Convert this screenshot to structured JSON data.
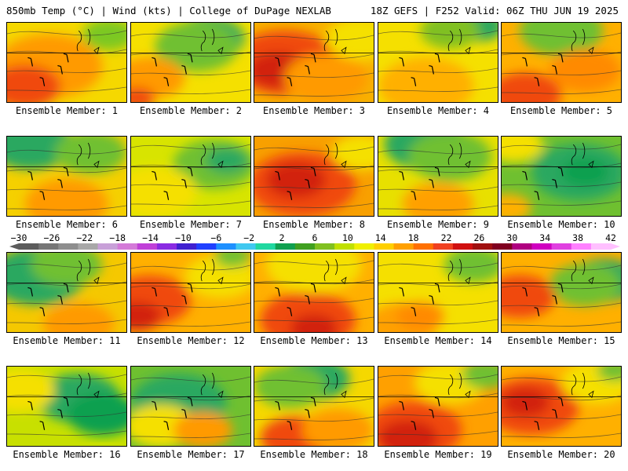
{
  "header": {
    "left": "850mb Temp (°C) | Wind (kts) | College of DuPage NEXLAB",
    "right": "18Z GEFS | F252 Valid: 06Z THU JUN 19 2025"
  },
  "colorbar": {
    "ticks": [
      "-30",
      "-26",
      "-22",
      "-18",
      "-14",
      "-10",
      "-6",
      "-2",
      "2",
      "6",
      "10",
      "14",
      "18",
      "22",
      "26",
      "30",
      "34",
      "38",
      "42"
    ],
    "colors": [
      "#5c5c5c",
      "#767676",
      "#8e8e8e",
      "#a8a8a8",
      "#c8a0d8",
      "#d47ad8",
      "#c040d8",
      "#8a2be2",
      "#4020d0",
      "#2040ff",
      "#1e90ff",
      "#40c8f0",
      "#20d8a0",
      "#10a050",
      "#40a020",
      "#80c020",
      "#c0e000",
      "#f0f000",
      "#ffd000",
      "#ffa000",
      "#ff7000",
      "#f04020",
      "#d01010",
      "#a01010",
      "#800020",
      "#b00080",
      "#d000c0",
      "#e040e0",
      "#ff80ff",
      "#ffc0ff"
    ],
    "range": [
      -30,
      42
    ]
  },
  "panels": [
    {
      "label": "Ensemble Member: 1",
      "base": "#f5d800",
      "blobs": [
        [
          "#ff9a00",
          0.35,
          0.55,
          0.45
        ],
        [
          "#f04a10",
          0.15,
          0.8,
          0.3
        ],
        [
          "#7cc820",
          0.85,
          0.15,
          0.22
        ]
      ]
    },
    {
      "label": "Ensemble Member: 2",
      "base": "#f5e000",
      "blobs": [
        [
          "#2aa860",
          0.65,
          0.2,
          0.3
        ],
        [
          "#6fc030",
          0.55,
          0.3,
          0.35
        ],
        [
          "#ff9a00",
          0.15,
          0.7,
          0.3
        ],
        [
          "#f04a10",
          0.05,
          0.95,
          0.15
        ]
      ]
    },
    {
      "label": "Ensemble Member: 3",
      "base": "#f8b000",
      "blobs": [
        [
          "#f04a10",
          0.25,
          0.5,
          0.45
        ],
        [
          "#d22010",
          0.2,
          0.6,
          0.25
        ],
        [
          "#ff9a00",
          0.6,
          0.7,
          0.35
        ],
        [
          "#f5e000",
          0.9,
          0.2,
          0.3
        ]
      ]
    },
    {
      "label": "Ensemble Member: 4",
      "base": "#f5e000",
      "blobs": [
        [
          "#ffb000",
          0.4,
          0.8,
          0.4
        ],
        [
          "#2aa860",
          0.85,
          0.05,
          0.2
        ],
        [
          "#80c020",
          0.6,
          0.1,
          0.25
        ]
      ]
    },
    {
      "label": "Ensemble Member: 5",
      "base": "#ffb000",
      "blobs": [
        [
          "#6fc030",
          0.5,
          0.1,
          0.35
        ],
        [
          "#f04a10",
          0.2,
          0.9,
          0.3
        ],
        [
          "#ff8a00",
          0.7,
          0.6,
          0.3
        ]
      ]
    },
    {
      "label": "Ensemble Member: 6",
      "base": "#f5d000",
      "blobs": [
        [
          "#2aa860",
          0.2,
          0.1,
          0.35
        ],
        [
          "#6fc030",
          0.7,
          0.2,
          0.3
        ],
        [
          "#ff9a00",
          0.5,
          0.85,
          0.35
        ]
      ]
    },
    {
      "label": "Ensemble Member: 7",
      "base": "#d8e400",
      "blobs": [
        [
          "#6fc030",
          0.7,
          0.35,
          0.35
        ],
        [
          "#2aa860",
          0.8,
          0.3,
          0.18
        ],
        [
          "#f5e000",
          0.2,
          0.7,
          0.35
        ]
      ]
    },
    {
      "label": "Ensemble Member: 8",
      "base": "#f8a000",
      "blobs": [
        [
          "#f04a10",
          0.4,
          0.6,
          0.45
        ],
        [
          "#d22010",
          0.35,
          0.55,
          0.25
        ],
        [
          "#f5e000",
          0.9,
          0.2,
          0.25
        ]
      ]
    },
    {
      "label": "Ensemble Member: 9",
      "base": "#e8e000",
      "blobs": [
        [
          "#2aa860",
          0.4,
          0.1,
          0.35
        ],
        [
          "#6fc030",
          0.6,
          0.25,
          0.35
        ],
        [
          "#ffa000",
          0.5,
          0.85,
          0.3
        ]
      ]
    },
    {
      "label": "Ensemble Member: 10",
      "base": "#6fc030",
      "blobs": [
        [
          "#2aa860",
          0.65,
          0.45,
          0.4
        ],
        [
          "#10a050",
          0.7,
          0.45,
          0.2
        ],
        [
          "#f5e000",
          0.1,
          0.1,
          0.25
        ],
        [
          "#ffb000",
          0.05,
          0.9,
          0.2
        ]
      ]
    },
    {
      "label": "Ensemble Member: 11",
      "base": "#f5c800",
      "blobs": [
        [
          "#2aa860",
          0.25,
          0.3,
          0.4
        ],
        [
          "#6fc030",
          0.5,
          0.15,
          0.3
        ],
        [
          "#ff9a00",
          0.6,
          0.9,
          0.3
        ]
      ]
    },
    {
      "label": "Ensemble Member: 12",
      "base": "#ffb000",
      "blobs": [
        [
          "#f04a10",
          0.15,
          0.6,
          0.35
        ],
        [
          "#d22010",
          0.05,
          0.8,
          0.2
        ],
        [
          "#f5e000",
          0.75,
          0.3,
          0.3
        ],
        [
          "#6fc030",
          0.85,
          0.05,
          0.15
        ]
      ]
    },
    {
      "label": "Ensemble Member: 13",
      "base": "#ffb000",
      "blobs": [
        [
          "#f04a10",
          0.45,
          0.85,
          0.4
        ],
        [
          "#d22010",
          0.5,
          0.95,
          0.2
        ],
        [
          "#f5e000",
          0.5,
          0.15,
          0.4
        ]
      ]
    },
    {
      "label": "Ensemble Member: 14",
      "base": "#f5e000",
      "blobs": [
        [
          "#6fc030",
          0.8,
          0.15,
          0.25
        ],
        [
          "#ffa000",
          0.2,
          0.9,
          0.3
        ],
        [
          "#ff8a00",
          0.35,
          0.8,
          0.2
        ]
      ]
    },
    {
      "label": "Ensemble Member: 15",
      "base": "#ffb000",
      "blobs": [
        [
          "#2aa860",
          0.85,
          0.35,
          0.3
        ],
        [
          "#6fc030",
          0.7,
          0.4,
          0.3
        ],
        [
          "#f04a10",
          0.15,
          0.55,
          0.3
        ]
      ]
    },
    {
      "label": "Ensemble Member: 16",
      "base": "#c8e000",
      "blobs": [
        [
          "#2aa860",
          0.6,
          0.4,
          0.35
        ],
        [
          "#10a050",
          0.8,
          0.6,
          0.3
        ],
        [
          "#f5e000",
          0.1,
          0.3,
          0.3
        ]
      ]
    },
    {
      "label": "Ensemble Member: 17",
      "base": "#6fc030",
      "blobs": [
        [
          "#2aa860",
          0.4,
          0.45,
          0.4
        ],
        [
          "#f5e000",
          0.25,
          0.75,
          0.3
        ],
        [
          "#ff9a00",
          0.6,
          0.8,
          0.25
        ]
      ]
    },
    {
      "label": "Ensemble Member: 18",
      "base": "#f5d800",
      "blobs": [
        [
          "#2aa860",
          0.5,
          0.15,
          0.3
        ],
        [
          "#6fc030",
          0.3,
          0.25,
          0.3
        ],
        [
          "#f04a10",
          0.35,
          0.9,
          0.3
        ],
        [
          "#ff9a00",
          0.7,
          0.8,
          0.3
        ]
      ]
    },
    {
      "label": "Ensemble Member: 19",
      "base": "#ffa000",
      "blobs": [
        [
          "#f04a10",
          0.3,
          0.8,
          0.4
        ],
        [
          "#d22010",
          0.25,
          0.9,
          0.25
        ],
        [
          "#f5e000",
          0.6,
          0.2,
          0.3
        ],
        [
          "#6fc030",
          0.9,
          0.1,
          0.2
        ]
      ]
    },
    {
      "label": "Ensemble Member: 20",
      "base": "#ffb000",
      "blobs": [
        [
          "#f04a10",
          0.25,
          0.5,
          0.4
        ],
        [
          "#d22010",
          0.2,
          0.45,
          0.2
        ],
        [
          "#f5e000",
          0.8,
          0.2,
          0.3
        ],
        [
          "#6fc030",
          0.95,
          0.05,
          0.15
        ]
      ]
    }
  ]
}
